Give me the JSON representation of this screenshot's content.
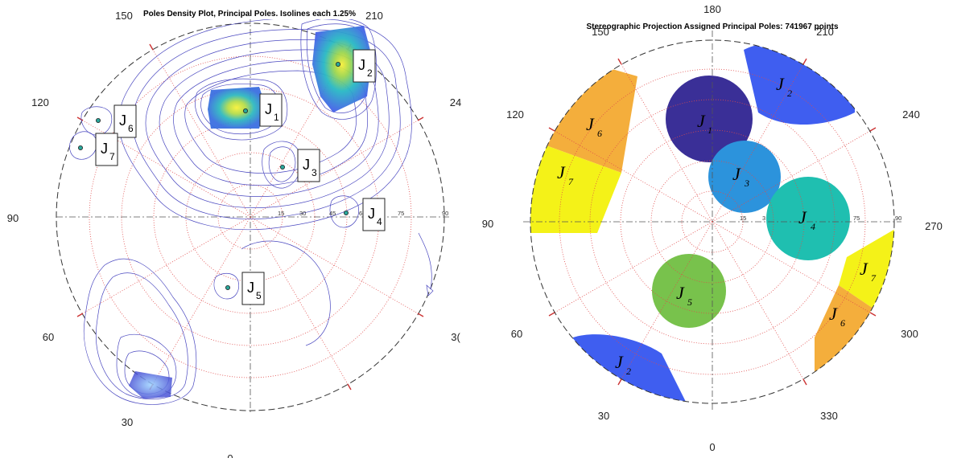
{
  "left_plot": {
    "title": "Poles Density Plot, Principal Poles. Isolines each 1.25%",
    "azimuth_labels": [
      "0",
      "30",
      "60",
      "90",
      "120",
      "150",
      "210",
      "24",
      "3("
    ],
    "dip_labels": [
      "15",
      "30",
      "45",
      "6",
      "75",
      "90"
    ],
    "pole_labels": [
      {
        "main": "J",
        "sub": "1"
      },
      {
        "main": "J",
        "sub": "2"
      },
      {
        "main": "J",
        "sub": "3"
      },
      {
        "main": "J",
        "sub": "4"
      },
      {
        "main": "J",
        "sub": "5"
      },
      {
        "main": "J",
        "sub": "6"
      },
      {
        "main": "J",
        "sub": "7"
      }
    ]
  },
  "right_plot": {
    "title": "Stereographic Projection Assigned Principal Poles: 741967 points",
    "azimuth_labels": [
      "0",
      "30",
      "60",
      "90",
      "120",
      "150",
      "180",
      "210",
      "240",
      "270",
      "300",
      "330"
    ],
    "dip_labels": [
      "15",
      "3",
      "75",
      "90"
    ],
    "cluster_labels": [
      {
        "main": "J",
        "sub": "1"
      },
      {
        "main": "J",
        "sub": "2"
      },
      {
        "main": "J",
        "sub": "2"
      },
      {
        "main": "J",
        "sub": "3"
      },
      {
        "main": "J",
        "sub": "4"
      },
      {
        "main": "J",
        "sub": "5"
      },
      {
        "main": "J",
        "sub": "6"
      },
      {
        "main": "J",
        "sub": "6"
      },
      {
        "main": "J",
        "sub": "7"
      },
      {
        "main": "J",
        "sub": "7"
      }
    ],
    "colors": {
      "J1": "#3a2f97",
      "J2": "#3f5ef0",
      "J3": "#2c93dc",
      "J4": "#1fbfb0",
      "J5": "#78c24c",
      "J6": "#f4ae3c",
      "J7": "#f4f218"
    }
  }
}
